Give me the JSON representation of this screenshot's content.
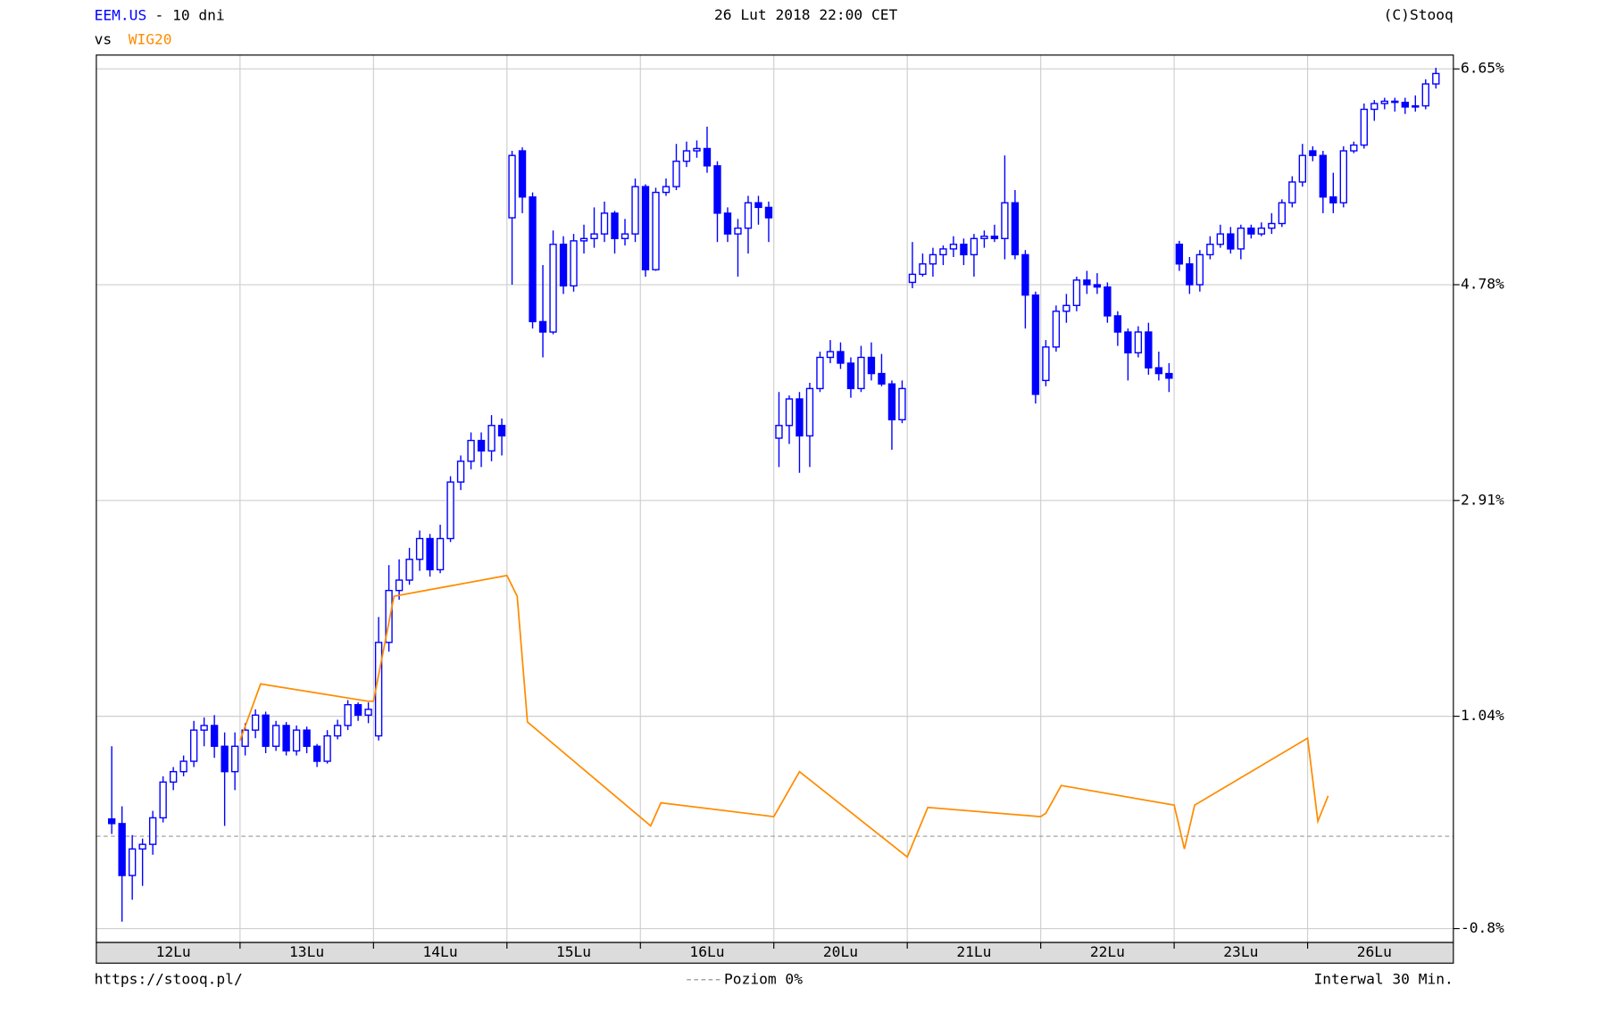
{
  "chart_data": {
    "type": "candlestick",
    "period": "- 10 dni",
    "compare_prefix": "vs",
    "date": "26 Lut 2018 22:00 CET",
    "copyright": "(C)Stooq",
    "source": "https://stooq.pl/",
    "interval": "Interwal 30 Min.",
    "reference_line": {
      "value": 0,
      "label": "Poziom 0%"
    },
    "categories": [
      "12Lu",
      "13Lu",
      "14Lu",
      "15Lu",
      "16Lu",
      "20Lu",
      "21Lu",
      "22Lu",
      "23Lu",
      "26Lu"
    ],
    "xlim": [
      -1.5,
      130.7
    ],
    "ylim": [
      -0.92,
      6.77
    ],
    "yticks": [
      {
        "value": 6.65,
        "label": "6.65%"
      },
      {
        "value": 4.78,
        "label": "4.78%"
      },
      {
        "value": 2.91,
        "label": "2.91%"
      },
      {
        "value": 1.04,
        "label": "1.04%"
      },
      {
        "value": -0.8,
        "label": "-0.8%"
      }
    ],
    "grid": true,
    "series": [
      {
        "name": "EEM.US",
        "type": "candlestick",
        "color": "#0000ff",
        "ohlc": [
          [
            [
              0.15,
              0.78,
              0.02,
              0.11
            ],
            [
              0.11,
              0.26,
              -0.74,
              -0.34
            ],
            [
              -0.34,
              0.01,
              -0.55,
              -0.11
            ],
            [
              -0.11,
              -0.02,
              -0.43,
              -0.07
            ],
            [
              -0.07,
              0.22,
              -0.16,
              0.16
            ],
            [
              0.16,
              0.52,
              0.12,
              0.47
            ],
            [
              0.47,
              0.6,
              0.4,
              0.56
            ],
            [
              0.56,
              0.7,
              0.52,
              0.65
            ],
            [
              0.65,
              1.0,
              0.6,
              0.92
            ],
            [
              0.92,
              1.03,
              0.78,
              0.96
            ],
            [
              0.96,
              1.05,
              0.68,
              0.78
            ],
            [
              0.78,
              0.9,
              0.09,
              0.56
            ],
            [
              0.56,
              0.9,
              0.4,
              0.78
            ]
          ],
          [
            [
              0.78,
              0.98,
              0.7,
              0.92
            ],
            [
              0.92,
              1.1,
              0.85,
              1.05
            ],
            [
              1.05,
              1.08,
              0.72,
              0.78
            ],
            [
              0.78,
              1.0,
              0.74,
              0.96
            ],
            [
              0.96,
              0.99,
              0.7,
              0.74
            ],
            [
              0.74,
              0.96,
              0.7,
              0.92
            ],
            [
              0.92,
              0.95,
              0.72,
              0.78
            ],
            [
              0.78,
              0.8,
              0.6,
              0.65
            ],
            [
              0.65,
              0.92,
              0.63,
              0.87
            ],
            [
              0.87,
              1.01,
              0.84,
              0.96
            ],
            [
              0.96,
              1.18,
              0.92,
              1.14
            ],
            [
              1.14,
              1.16,
              1.0,
              1.05
            ],
            [
              1.05,
              1.16,
              0.98,
              1.1
            ]
          ],
          [
            [
              0.87,
              1.9,
              0.83,
              1.68
            ],
            [
              1.68,
              2.35,
              1.6,
              2.13
            ],
            [
              2.13,
              2.4,
              2.05,
              2.22
            ],
            [
              2.22,
              2.5,
              2.18,
              2.4
            ],
            [
              2.4,
              2.65,
              2.3,
              2.58
            ],
            [
              2.58,
              2.62,
              2.25,
              2.31
            ],
            [
              2.31,
              2.7,
              2.28,
              2.58
            ],
            [
              2.58,
              3.12,
              2.55,
              3.07
            ],
            [
              3.07,
              3.3,
              3.0,
              3.25
            ],
            [
              3.25,
              3.5,
              3.18,
              3.43
            ],
            [
              3.43,
              3.5,
              3.2,
              3.34
            ],
            [
              3.34,
              3.65,
              3.25,
              3.56
            ],
            [
              3.56,
              3.62,
              3.3,
              3.47
            ]
          ],
          [
            [
              5.36,
              5.94,
              4.78,
              5.9
            ],
            [
              5.94,
              5.97,
              5.4,
              5.54
            ],
            [
              5.54,
              5.58,
              4.4,
              4.46
            ],
            [
              4.46,
              4.95,
              4.15,
              4.37
            ],
            [
              4.37,
              5.25,
              4.35,
              5.13
            ],
            [
              5.13,
              5.2,
              4.7,
              4.77
            ],
            [
              4.77,
              5.22,
              4.72,
              5.16
            ],
            [
              5.16,
              5.3,
              5.05,
              5.18
            ],
            [
              5.18,
              5.45,
              5.1,
              5.22
            ],
            [
              5.22,
              5.5,
              5.15,
              5.4
            ],
            [
              5.4,
              5.42,
              5.05,
              5.18
            ],
            [
              5.18,
              5.35,
              5.12,
              5.22
            ],
            [
              5.22,
              5.7,
              5.15,
              5.63
            ]
          ],
          [
            [
              5.63,
              5.65,
              4.85,
              4.91
            ],
            [
              4.91,
              5.62,
              4.9,
              5.58
            ],
            [
              5.58,
              5.7,
              5.55,
              5.63
            ],
            [
              5.63,
              6.0,
              5.6,
              5.85
            ],
            [
              5.85,
              6.02,
              5.8,
              5.94
            ],
            [
              5.94,
              6.03,
              5.88,
              5.96
            ],
            [
              5.96,
              6.15,
              5.75,
              5.81
            ],
            [
              5.81,
              5.85,
              5.15,
              5.4
            ],
            [
              5.4,
              5.45,
              5.15,
              5.22
            ],
            [
              5.22,
              5.35,
              4.85,
              5.27
            ],
            [
              5.27,
              5.55,
              5.05,
              5.49
            ],
            [
              5.49,
              5.55,
              5.3,
              5.45
            ],
            [
              5.45,
              5.5,
              5.15,
              5.36
            ]
          ],
          [
            [
              3.45,
              3.85,
              3.2,
              3.56
            ],
            [
              3.56,
              3.82,
              3.4,
              3.79
            ],
            [
              3.79,
              3.85,
              3.15,
              3.47
            ],
            [
              3.47,
              3.93,
              3.2,
              3.88
            ],
            [
              3.88,
              4.2,
              3.85,
              4.15
            ],
            [
              4.15,
              4.3,
              4.1,
              4.2
            ],
            [
              4.2,
              4.28,
              4.05,
              4.1
            ],
            [
              4.1,
              4.15,
              3.8,
              3.88
            ],
            [
              3.88,
              4.25,
              3.85,
              4.15
            ],
            [
              4.15,
              4.28,
              3.95,
              4.01
            ],
            [
              4.01,
              4.18,
              3.9,
              3.92
            ],
            [
              3.92,
              3.95,
              3.35,
              3.61
            ],
            [
              3.61,
              3.95,
              3.58,
              3.88
            ]
          ],
          [
            [
              4.8,
              5.15,
              4.75,
              4.87
            ],
            [
              4.87,
              5.05,
              4.85,
              4.96
            ],
            [
              4.96,
              5.1,
              4.85,
              5.04
            ],
            [
              5.04,
              5.12,
              4.95,
              5.09
            ],
            [
              5.09,
              5.2,
              5.02,
              5.13
            ],
            [
              5.13,
              5.18,
              4.95,
              5.04
            ],
            [
              5.04,
              5.22,
              4.85,
              5.18
            ],
            [
              5.18,
              5.25,
              5.1,
              5.2
            ],
            [
              5.2,
              5.3,
              5.15,
              5.18
            ],
            [
              5.18,
              5.9,
              5.0,
              5.49
            ],
            [
              5.49,
              5.6,
              5.0,
              5.04
            ],
            [
              5.04,
              5.08,
              4.4,
              4.69
            ],
            [
              4.69,
              4.72,
              3.75,
              3.83
            ]
          ],
          [
            [
              3.95,
              4.3,
              3.9,
              4.24
            ],
            [
              4.24,
              4.6,
              4.2,
              4.55
            ],
            [
              4.55,
              4.7,
              4.45,
              4.6
            ],
            [
              4.6,
              4.85,
              4.55,
              4.82
            ],
            [
              4.82,
              4.9,
              4.7,
              4.78
            ],
            [
              4.78,
              4.88,
              4.7,
              4.76
            ],
            [
              4.76,
              4.8,
              4.45,
              4.51
            ],
            [
              4.51,
              4.55,
              4.25,
              4.37
            ],
            [
              4.37,
              4.4,
              3.95,
              4.19
            ],
            [
              4.19,
              4.42,
              4.15,
              4.37
            ],
            [
              4.37,
              4.45,
              4.0,
              4.06
            ],
            [
              4.06,
              4.2,
              3.95,
              4.01
            ],
            [
              4.01,
              4.1,
              3.85,
              3.97
            ]
          ],
          [
            [
              5.13,
              5.16,
              4.9,
              4.96
            ],
            [
              4.96,
              5.02,
              4.7,
              4.78
            ],
            [
              4.78,
              5.08,
              4.72,
              5.04
            ],
            [
              5.04,
              5.2,
              5.0,
              5.13
            ],
            [
              5.13,
              5.3,
              5.1,
              5.22
            ],
            [
              5.22,
              5.28,
              5.05,
              5.09
            ],
            [
              5.09,
              5.3,
              5.0,
              5.27
            ],
            [
              5.27,
              5.3,
              5.18,
              5.22
            ],
            [
              5.22,
              5.32,
              5.2,
              5.27
            ],
            [
              5.27,
              5.4,
              5.22,
              5.31
            ],
            [
              5.31,
              5.52,
              5.28,
              5.49
            ],
            [
              5.49,
              5.72,
              5.45,
              5.67
            ],
            [
              5.67,
              6.0,
              5.63,
              5.9
            ]
          ],
          [
            [
              5.94,
              5.98,
              5.85,
              5.9
            ],
            [
              5.9,
              5.94,
              5.4,
              5.54
            ],
            [
              5.54,
              5.75,
              5.4,
              5.49
            ],
            [
              5.49,
              5.98,
              5.45,
              5.94
            ],
            [
              5.94,
              6.02,
              5.92,
              5.99
            ],
            [
              5.99,
              6.35,
              5.96,
              6.3
            ],
            [
              6.3,
              6.38,
              6.2,
              6.35
            ],
            [
              6.35,
              6.4,
              6.3,
              6.37
            ],
            [
              6.37,
              6.4,
              6.28,
              6.36
            ],
            [
              6.36,
              6.4,
              6.26,
              6.32
            ],
            [
              6.32,
              6.42,
              6.28,
              6.33
            ],
            [
              6.33,
              6.56,
              6.3,
              6.52
            ],
            [
              6.52,
              6.66,
              6.48,
              6.61
            ]
          ]
        ]
      },
      {
        "name": "WIG20",
        "type": "line",
        "color": "#ff8c00",
        "x": [
          12.5,
          14.5,
          25,
          25.5,
          27.5,
          38.5,
          39.5,
          40.5,
          52.5,
          53.5,
          64.5,
          67,
          77.5,
          79.5,
          90.5,
          91,
          92.5,
          103.5,
          104.5,
          105.5,
          116.5,
          117.5,
          118.5
        ],
        "values": [
          0.83,
          1.32,
          1.17,
          1.17,
          2.08,
          2.26,
          2.08,
          0.99,
          0.09,
          0.29,
          0.17,
          0.56,
          -0.18,
          0.25,
          0.17,
          0.2,
          0.44,
          0.27,
          -0.11,
          0.27,
          0.85,
          0.13,
          0.35
        ]
      }
    ]
  }
}
